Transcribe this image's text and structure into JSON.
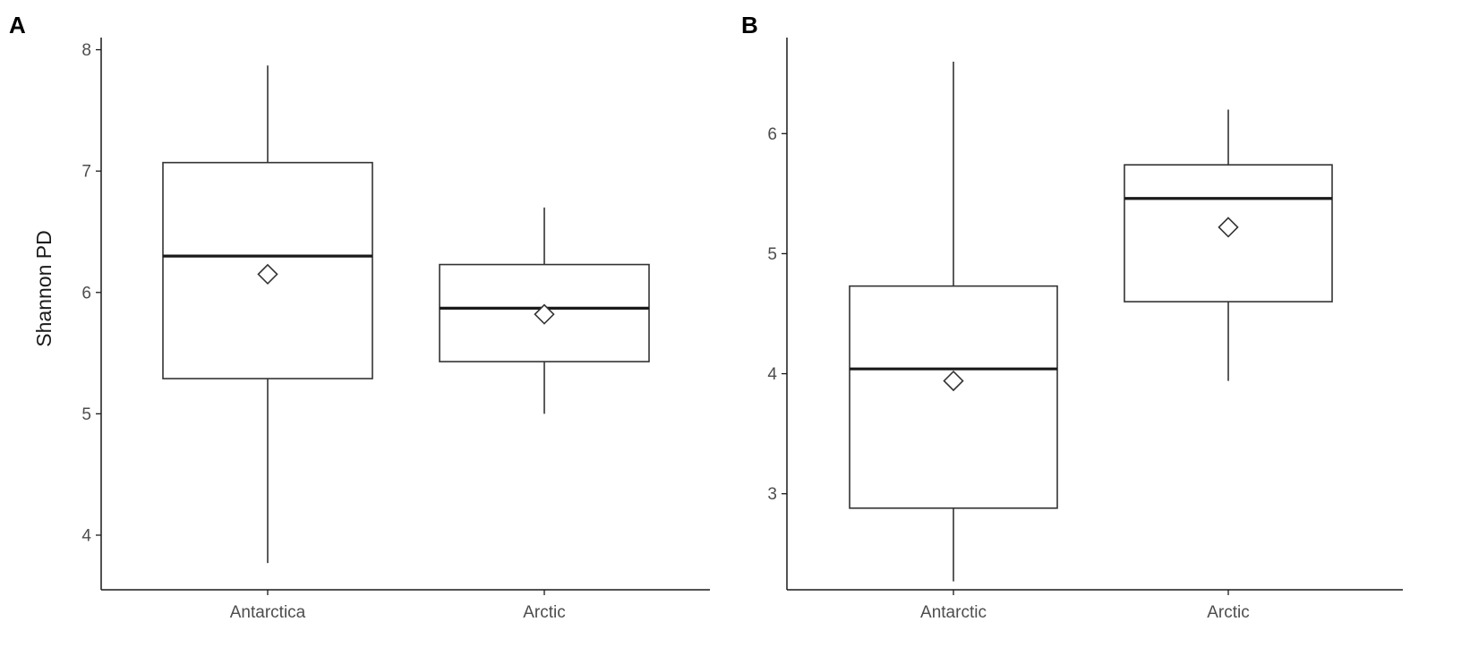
{
  "chart_data": [
    {
      "type": "box",
      "panel_label": "A",
      "ylabel": "Shannon  PD",
      "xlabel": "",
      "ylim": [
        3.55,
        8.1
      ],
      "yticks": [
        4,
        5,
        6,
        7,
        8
      ],
      "grid": false,
      "categories": [
        "Antarctica",
        "Arctic"
      ],
      "boxes": [
        {
          "category": "Antarctica",
          "whisker_low": 3.77,
          "q1": 5.29,
          "median": 6.3,
          "q3": 7.07,
          "whisker_high": 7.87,
          "mean": 6.15
        },
        {
          "category": "Arctic",
          "whisker_low": 5.0,
          "q1": 5.43,
          "median": 5.87,
          "q3": 6.23,
          "whisker_high": 6.7,
          "mean": 5.82
        }
      ]
    },
    {
      "type": "box",
      "panel_label": "B",
      "ylabel": "",
      "xlabel": "",
      "ylim": [
        2.2,
        6.8
      ],
      "yticks": [
        3,
        4,
        5,
        6
      ],
      "grid": false,
      "categories": [
        "Antarctic",
        "Arctic"
      ],
      "boxes": [
        {
          "category": "Antarctic",
          "whisker_low": 2.27,
          "q1": 2.88,
          "median": 4.04,
          "q3": 4.73,
          "whisker_high": 6.6,
          "mean": 3.94
        },
        {
          "category": "Arctic",
          "whisker_low": 3.94,
          "q1": 4.6,
          "median": 5.46,
          "q3": 5.74,
          "whisker_high": 6.2,
          "mean": 5.22
        }
      ]
    }
  ]
}
